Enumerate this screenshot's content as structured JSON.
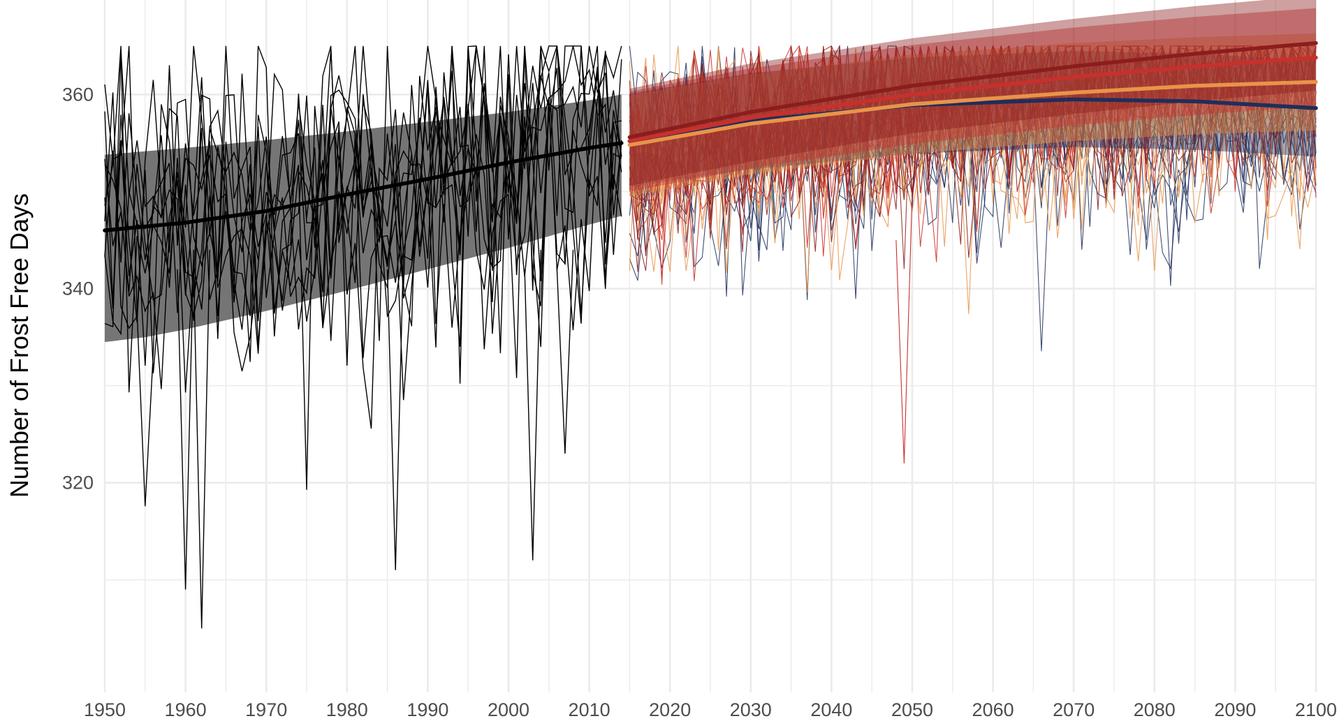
{
  "chart_data": {
    "type": "line",
    "title": "",
    "xlabel": "",
    "ylabel": "Number of Frost Free Days",
    "xlim": [
      1950,
      2100
    ],
    "ylim": [
      302,
      366
    ],
    "grid": true,
    "legend": "none",
    "x_ticks": [
      1950,
      1960,
      1970,
      1980,
      1990,
      2000,
      2010,
      2020,
      2030,
      2040,
      2050,
      2060,
      2070,
      2080,
      2090,
      2100
    ],
    "x_tick_labels": [
      "1950",
      "1960",
      "1970",
      "1980",
      "1990",
      "2000",
      "2010",
      "2020",
      "2030",
      "2040",
      "2050",
      "2060",
      "2070",
      "2080",
      "2090",
      "2100"
    ],
    "y_ticks": [
      320,
      340,
      360
    ],
    "y_tick_labels": [
      "320",
      "340",
      "360"
    ],
    "colors": {
      "historical": "#000000",
      "historical_band": "#6e6e6e",
      "ssp_navy": "#1f2e5a",
      "ssp_orange": "#e8944a",
      "ssp_red": "#c8302d",
      "ssp_darkred": "#8b1d1d",
      "grid": "#ebebeb"
    },
    "historical": {
      "years": [
        1950,
        2014
      ],
      "ensemble_member_count": 10,
      "observed_extremes": {
        "min": [
          [
            1960,
            309
          ],
          [
            1962,
            305
          ],
          [
            1986,
            311
          ],
          [
            2003,
            312
          ],
          [
            2007,
            323
          ]
        ],
        "max": 365
      },
      "trend": {
        "x": [
          1950,
          1960,
          1970,
          1980,
          1990,
          2000,
          2010,
          2014
        ],
        "y": [
          346,
          346.8,
          348,
          349.7,
          351.3,
          353.0,
          354.5,
          355
        ]
      },
      "band_lower": {
        "x": [
          1950,
          1955,
          1960,
          1970,
          1980,
          1990,
          2000,
          2010,
          2014
        ],
        "y": [
          334.5,
          335.0,
          335.8,
          337.7,
          339.8,
          342.0,
          344.2,
          346.6,
          347.5
        ]
      },
      "band_upper": {
        "x": [
          1950,
          1960,
          1970,
          1980,
          1990,
          2000,
          2010,
          2014
        ],
        "y": [
          353.8,
          354.5,
          355.3,
          356.2,
          357.2,
          358.2,
          359.4,
          360.0
        ]
      }
    },
    "projections": {
      "years": [
        2015,
        2100
      ],
      "ensemble_member_count": 10,
      "notable_minimum": [
        2049,
        322
      ],
      "series": [
        {
          "color": "#1f2e5a",
          "trend": {
            "x": [
              2015,
              2030,
              2050,
              2070,
              2085,
              2100
            ],
            "y": [
              355.2,
              357.3,
              358.9,
              359.5,
              359.3,
              358.6
            ]
          },
          "band_lower": {
            "x": [
              2015,
              2030,
              2050,
              2070,
              2085,
              2100
            ],
            "y": [
              350.5,
              352.3,
              353.9,
              354.6,
              354.3,
              353.6
            ]
          },
          "band_upper": {
            "x": [
              2015,
              2030,
              2050,
              2070,
              2085,
              2100
            ],
            "y": [
              360.1,
              362.2,
              363.8,
              364.5,
              364.2,
              363.5
            ]
          },
          "member_mean": 352.5,
          "member_sd": 5.8
        },
        {
          "color": "#e8944a",
          "trend": {
            "x": [
              2015,
              2030,
              2050,
              2070,
              2085,
              2100
            ],
            "y": [
              354.8,
              357.0,
              359.0,
              360.2,
              360.9,
              361.3
            ]
          },
          "band_lower": {
            "x": [
              2015,
              2030,
              2050,
              2070,
              2085,
              2100
            ],
            "y": [
              349.5,
              351.8,
              353.9,
              355.2,
              355.9,
              356.3
            ]
          },
          "band_upper": {
            "x": [
              2015,
              2030,
              2050,
              2070,
              2085,
              2100
            ],
            "y": [
              359.9,
              362.1,
              364.1,
              365.3,
              365.9,
              366.3
            ]
          },
          "member_mean": 354.0,
          "member_sd": 5.2
        },
        {
          "color": "#c8302d",
          "trend": {
            "x": [
              2015,
              2030,
              2050,
              2070,
              2085,
              2100
            ],
            "y": [
              355.2,
              357.6,
              360.0,
              361.8,
              362.9,
              363.8
            ]
          },
          "band_lower": {
            "x": [
              2015,
              2030,
              2050,
              2070,
              2085,
              2100
            ],
            "y": [
              350.0,
              352.4,
              354.9,
              356.8,
              357.9,
              358.8
            ]
          },
          "band_upper": {
            "x": [
              2015,
              2030,
              2050,
              2070,
              2085,
              2100
            ],
            "y": [
              360.3,
              362.7,
              365.1,
              366.9,
              368.0,
              368.9
            ]
          },
          "member_mean": 355.0,
          "member_sd": 5.0
        },
        {
          "color": "#8b1d1d",
          "trend": {
            "x": [
              2015,
              2030,
              2050,
              2070,
              2085,
              2100
            ],
            "y": [
              355.6,
              358.2,
              360.9,
              362.9,
              364.2,
              365.3
            ]
          },
          "band_lower": {
            "x": [
              2015,
              2030,
              2050,
              2070,
              2085,
              2100
            ],
            "y": [
              350.6,
              353.1,
              356.0,
              358.0,
              359.3,
              360.4
            ]
          },
          "band_upper": {
            "x": [
              2015,
              2030,
              2050,
              2070,
              2085,
              2100
            ],
            "y": [
              360.6,
              363.2,
              365.8,
              367.8,
              369.1,
              370.2
            ]
          },
          "member_mean": 356.0,
          "member_sd": 4.8
        }
      ]
    }
  }
}
